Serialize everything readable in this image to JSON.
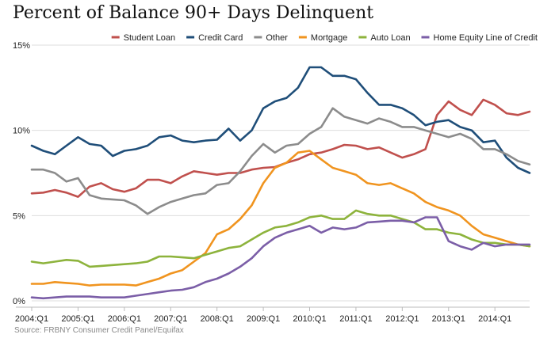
{
  "chart_data": {
    "type": "line",
    "title": "Percent of Balance 90+ Days Delinquent",
    "source": "Source: FRBNY Consumer Credit Panel/Equifax",
    "xlabel": "",
    "ylabel": "",
    "x_start": "2004:Q1",
    "x_end": "2014:Q4",
    "x_ticks": [
      "2004:Q1",
      "2005:Q1",
      "2006:Q1",
      "2007:Q1",
      "2008:Q1",
      "2009:Q1",
      "2010:Q1",
      "2011:Q1",
      "2012:Q1",
      "2013:Q1",
      "2014:Q1"
    ],
    "y_ticks": [
      "0%",
      "5%",
      "10%",
      "15%"
    ],
    "ylim": [
      0,
      15
    ],
    "grid": "horizontal",
    "legend_position": "top",
    "x": [
      "2004:Q1",
      "2004:Q2",
      "2004:Q3",
      "2004:Q4",
      "2005:Q1",
      "2005:Q2",
      "2005:Q3",
      "2005:Q4",
      "2006:Q1",
      "2006:Q2",
      "2006:Q3",
      "2006:Q4",
      "2007:Q1",
      "2007:Q2",
      "2007:Q3",
      "2007:Q4",
      "2008:Q1",
      "2008:Q2",
      "2008:Q3",
      "2008:Q4",
      "2009:Q1",
      "2009:Q2",
      "2009:Q3",
      "2009:Q4",
      "2010:Q1",
      "2010:Q2",
      "2010:Q3",
      "2010:Q4",
      "2011:Q1",
      "2011:Q2",
      "2011:Q3",
      "2011:Q4",
      "2012:Q1",
      "2012:Q2",
      "2012:Q3",
      "2012:Q4",
      "2013:Q1",
      "2013:Q2",
      "2013:Q3",
      "2013:Q4",
      "2014:Q1",
      "2014:Q2",
      "2014:Q3",
      "2014:Q4"
    ],
    "series": [
      {
        "name": "Student Loan",
        "color": "#c0504d",
        "values": [
          6.3,
          6.35,
          6.5,
          6.35,
          6.1,
          6.7,
          6.9,
          6.55,
          6.4,
          6.6,
          7.1,
          7.1,
          6.9,
          7.3,
          7.6,
          7.5,
          7.4,
          7.5,
          7.5,
          7.7,
          7.8,
          7.85,
          8.1,
          8.3,
          8.6,
          8.7,
          8.9,
          9.15,
          9.1,
          8.9,
          9.0,
          8.7,
          8.4,
          8.6,
          8.9,
          10.9,
          11.7,
          11.2,
          10.9,
          11.8,
          11.5,
          11.0,
          10.9,
          11.1
        ]
      },
      {
        "name": "Credit Card",
        "color": "#1f4e79",
        "values": [
          9.1,
          8.8,
          8.6,
          9.1,
          9.6,
          9.2,
          9.1,
          8.5,
          8.8,
          8.9,
          9.1,
          9.6,
          9.7,
          9.4,
          9.3,
          9.4,
          9.45,
          10.1,
          9.4,
          10.0,
          11.3,
          11.7,
          11.9,
          12.5,
          13.7,
          13.7,
          13.2,
          13.2,
          13.0,
          12.2,
          11.5,
          11.5,
          11.3,
          10.9,
          10.3,
          10.5,
          10.6,
          10.2,
          10.0,
          9.3,
          9.4,
          8.4,
          7.8,
          7.5
        ]
      },
      {
        "name": "Other",
        "color": "#8c8c8c",
        "values": [
          7.7,
          7.7,
          7.5,
          7.0,
          7.2,
          6.2,
          6.0,
          5.95,
          5.9,
          5.6,
          5.1,
          5.5,
          5.8,
          6.0,
          6.2,
          6.3,
          6.8,
          6.9,
          7.6,
          8.5,
          9.2,
          8.7,
          9.1,
          9.2,
          9.8,
          10.2,
          11.3,
          10.8,
          10.6,
          10.4,
          10.7,
          10.5,
          10.2,
          10.2,
          10.0,
          9.8,
          9.6,
          9.8,
          9.5,
          8.9,
          8.9,
          8.6,
          8.2,
          8.0
        ]
      },
      {
        "name": "Mortgage",
        "color": "#f0941f",
        "values": [
          1.0,
          1.0,
          1.1,
          1.05,
          1.0,
          0.9,
          0.95,
          0.95,
          0.95,
          0.9,
          1.1,
          1.3,
          1.6,
          1.8,
          2.3,
          2.8,
          3.9,
          4.2,
          4.8,
          5.6,
          6.9,
          7.8,
          8.1,
          8.7,
          8.8,
          8.3,
          7.8,
          7.6,
          7.4,
          6.9,
          6.8,
          6.9,
          6.6,
          6.3,
          5.8,
          5.5,
          5.3,
          5.0,
          4.4,
          3.9,
          3.7,
          3.5,
          3.3,
          3.2
        ]
      },
      {
        "name": "Auto Loan",
        "color": "#8db33c",
        "values": [
          2.3,
          2.2,
          2.3,
          2.4,
          2.35,
          2.0,
          2.05,
          2.1,
          2.15,
          2.2,
          2.3,
          2.6,
          2.6,
          2.55,
          2.5,
          2.7,
          2.9,
          3.1,
          3.2,
          3.6,
          4.0,
          4.3,
          4.4,
          4.6,
          4.9,
          5.0,
          4.8,
          4.8,
          5.3,
          5.1,
          5.0,
          5.0,
          4.8,
          4.6,
          4.2,
          4.2,
          4.0,
          3.9,
          3.6,
          3.4,
          3.4,
          3.3,
          3.3,
          3.2
        ]
      },
      {
        "name": "Home Equity Line of Credit",
        "color": "#7b5ea7",
        "values": [
          0.2,
          0.15,
          0.2,
          0.25,
          0.25,
          0.25,
          0.2,
          0.2,
          0.2,
          0.3,
          0.4,
          0.5,
          0.6,
          0.65,
          0.8,
          1.1,
          1.3,
          1.6,
          2.0,
          2.5,
          3.2,
          3.7,
          4.0,
          4.2,
          4.4,
          4.0,
          4.3,
          4.2,
          4.3,
          4.6,
          4.65,
          4.7,
          4.7,
          4.6,
          4.9,
          4.9,
          3.5,
          3.2,
          3.0,
          3.4,
          3.2,
          3.3,
          3.3,
          3.3
        ]
      }
    ]
  }
}
